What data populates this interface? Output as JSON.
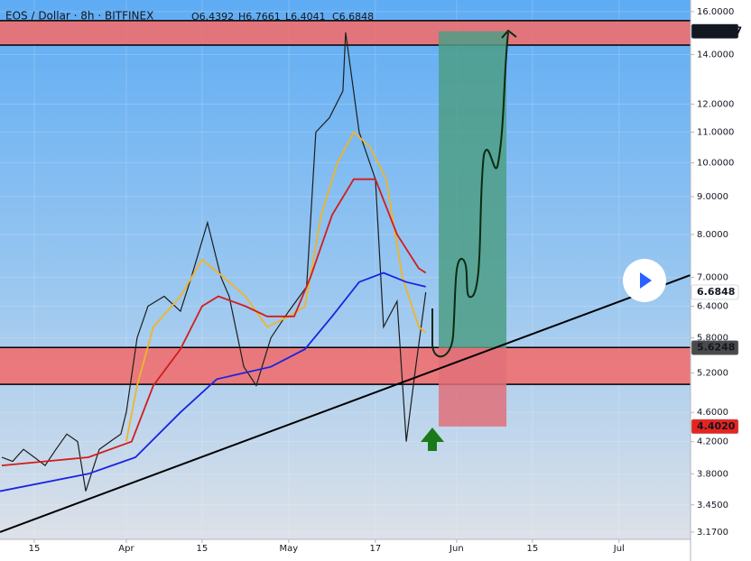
{
  "chart_data": {
    "type": "line",
    "title": "EOS / Dollar · 8h · BITFINEX",
    "ohlc": [
      "O6.4392",
      "H6.7661",
      "L6.4041",
      "C6.6848"
    ],
    "log_scale": true,
    "grid": true,
    "xlim": [
      7.67,
      135.2
    ],
    "xticks": [
      {
        "value": 14,
        "label": "15"
      },
      {
        "value": 31,
        "label": "Apr"
      },
      {
        "value": 45,
        "label": "15"
      },
      {
        "value": 61,
        "label": "May"
      },
      {
        "value": 77,
        "label": "17"
      },
      {
        "value": 92,
        "label": "Jun"
      },
      {
        "value": 106,
        "label": "15"
      },
      {
        "value": 122,
        "label": "Jul"
      }
    ],
    "ylim": [
      3.099,
      16.59
    ],
    "yticks": [
      {
        "value": 16,
        "label": "16.0000"
      },
      {
        "value": 14,
        "label": "14.0000"
      },
      {
        "value": 12,
        "label": "12.0000"
      },
      {
        "value": 11,
        "label": "11.0000"
      },
      {
        "value": 10,
        "label": "10.0000"
      },
      {
        "value": 9,
        "label": "9.0000"
      },
      {
        "value": 8,
        "label": "8.0000"
      },
      {
        "value": 7,
        "label": "7.0000"
      },
      {
        "value": 6.4,
        "label": "6.4000"
      },
      {
        "value": 5.8,
        "label": "5.8000"
      },
      {
        "value": 5.2,
        "label": "5.2000"
      },
      {
        "value": 4.6,
        "label": "4.6000"
      },
      {
        "value": 4.2,
        "label": "4.2000"
      },
      {
        "value": 3.8,
        "label": "3.8000"
      },
      {
        "value": 3.45,
        "label": "3.4500"
      },
      {
        "value": 3.17,
        "label": "3.1700"
      }
    ],
    "zones": [
      {
        "range": [
          14.42,
          15.56
        ],
        "color": "#ef6f6f"
      },
      {
        "range": [
          5.02,
          5.63
        ],
        "color": "#ef6f6f"
      }
    ],
    "boxes": [
      {
        "x_range": [
          88.7,
          101.2
        ],
        "range": [
          5.6248,
          15.0537
        ],
        "color": "#4e9e86"
      },
      {
        "x_range": [
          88.7,
          101.2
        ],
        "range": [
          4.402,
          5.6248
        ],
        "color": "#e0707a"
      }
    ],
    "series": [
      {
        "color": "#1d1d1d",
        "x": [
          8,
          10,
          12,
          14,
          16,
          18,
          20,
          22,
          23.5,
          26,
          28,
          30,
          31,
          33,
          35,
          38,
          41,
          43,
          46,
          48.5,
          50,
          52.7,
          55,
          57.7,
          61,
          64.3,
          66,
          68.5,
          71,
          71.5,
          74,
          77,
          78.5,
          81,
          82.7,
          84.3,
          86.3
        ],
        "values": [
          4.0,
          3.95,
          4.1,
          4.0,
          3.9,
          4.1,
          4.3,
          4.2,
          3.6,
          4.1,
          4.2,
          4.3,
          4.6,
          5.8,
          6.4,
          6.6,
          6.3,
          7.0,
          8.3,
          7.0,
          6.6,
          5.3,
          5.0,
          5.8,
          6.3,
          6.8,
          11.0,
          11.5,
          12.5,
          15.0,
          11.0,
          9.5,
          6.0,
          6.5,
          4.2,
          5.2,
          6.6848
        ]
      },
      {
        "color": "#f0b429",
        "x": [
          31,
          33,
          36,
          41,
          45,
          49,
          53,
          57,
          61,
          64,
          67,
          70,
          73,
          76,
          79,
          82,
          85,
          86.3
        ],
        "values": [
          4.2,
          5.0,
          6.0,
          6.6,
          7.4,
          7.0,
          6.6,
          6.0,
          6.2,
          6.4,
          8.5,
          10.0,
          11.0,
          10.5,
          9.5,
          7.0,
          6.0,
          5.9
        ]
      },
      {
        "color": "#d41c1c",
        "x": [
          8,
          24,
          32,
          36,
          41,
          45,
          48,
          53,
          57,
          62,
          65,
          69,
          73,
          77,
          81,
          85,
          86.3
        ],
        "values": [
          3.9,
          4.0,
          4.2,
          5.0,
          5.6,
          6.4,
          6.6,
          6.4,
          6.2,
          6.2,
          7.0,
          8.5,
          9.5,
          9.5,
          8.0,
          7.2,
          7.1
        ]
      },
      {
        "color": "#1a24e0",
        "x": [
          7.67,
          24,
          32.7,
          41,
          47.7,
          57.7,
          64,
          69,
          74,
          78.5,
          82.7,
          86.3
        ],
        "values": [
          3.6,
          3.8,
          4.0,
          4.6,
          5.1,
          5.3,
          5.6,
          6.2,
          6.9,
          7.1,
          6.9,
          6.8
        ]
      }
    ],
    "trendline": {
      "color": "#000000",
      "x": [
        7.67,
        135.2
      ],
      "values": [
        3.17,
        7.05
      ]
    },
    "price_labels": [
      {
        "value": 15.0537,
        "bg": "#131722",
        "fg": "#ffffff"
      },
      {
        "value": 6.6848,
        "bg": "#ffffff",
        "fg": "#131722"
      },
      {
        "value": 5.6248,
        "bg": "#4a4a4a",
        "fg": "#ffffff"
      },
      {
        "value": {
          "value": 4.402,
          "label": "4.4020"
        },
        "bg": "#e5241f",
        "fg": "#ffffff"
      }
    ]
  }
}
